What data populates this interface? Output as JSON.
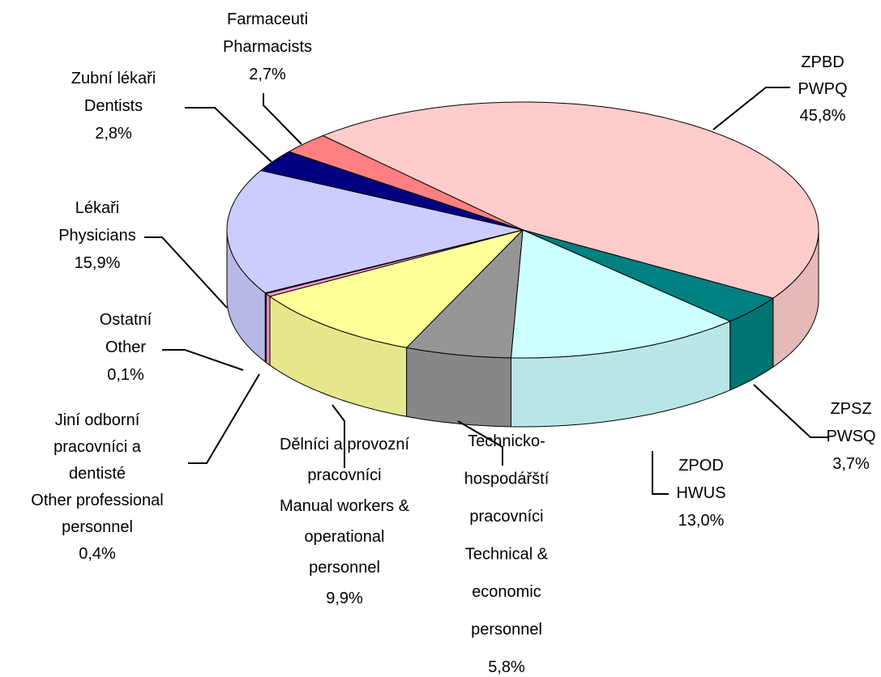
{
  "chart_data": {
    "type": "pie3d",
    "categories": [
      [
        "ZPBD",
        "PWPQ"
      ],
      [
        "ZPSZ",
        "PWSQ"
      ],
      [
        "ZPOD",
        "HWUS"
      ],
      [
        "Technicko-",
        "hospodářští",
        "pracovníci",
        "Technical &",
        "economic",
        "personnel"
      ],
      [
        "Dělníci a provozní",
        "pracovníci",
        "Manual workers &",
        "operational",
        "personnel"
      ],
      [
        "Jiní odborní",
        "pracovníci a",
        "dentisté",
        "Other professional",
        "personnel"
      ],
      [
        "Ostatní",
        "Other"
      ],
      [
        "Lékaři",
        "Physicians"
      ],
      [
        "Zubní lékaři",
        "Dentists"
      ],
      [
        "Farmaceuti",
        "Pharmacists"
      ]
    ],
    "values": [
      45.8,
      3.7,
      13.0,
      5.8,
      9.9,
      0.4,
      0.1,
      15.9,
      2.8,
      2.7
    ],
    "value_labels": [
      "45,8%",
      "3,7%",
      "13,0%",
      "5,8%",
      "9,9%",
      "0,4%",
      "0,1%",
      "15,9%",
      "2,8%",
      "2,7%"
    ],
    "colors": [
      "#ffcccc",
      "#008080",
      "#ccffff",
      "#969696",
      "#ffff99",
      "#ff99cc",
      "#800080",
      "#ccccff",
      "#000080",
      "#ff8080"
    ]
  }
}
